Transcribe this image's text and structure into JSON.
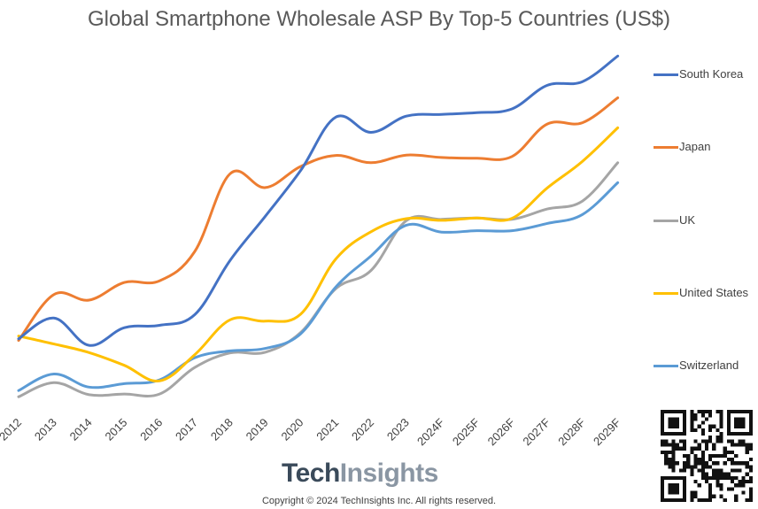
{
  "chart_data": {
    "type": "line",
    "title": "Global Smartphone Wholesale ASP By Top-5 Countries (US$)",
    "xlabel": "",
    "ylabel": "",
    "categories": [
      "2012",
      "2013",
      "2014",
      "2015",
      "2016",
      "2017",
      "2018",
      "2019",
      "2020",
      "2021",
      "2022",
      "2023",
      "2024F",
      "2025F",
      "2026F",
      "2027F",
      "2028F",
      "2029F"
    ],
    "ylim": [
      0,
      100
    ],
    "grid": false,
    "y_axis_labels_shown": false,
    "legend_position": "right",
    "series": [
      {
        "name": "South Korea",
        "color": "#4472C4",
        "values": [
          27.0,
          33.0,
          25.1,
          30.2,
          30.9,
          34.0,
          49.7,
          62.5,
          75.7,
          91.2,
          86.8,
          91.5,
          92.0,
          92.5,
          93.6,
          100.4,
          101.5,
          108.9
        ]
      },
      {
        "name": "Japan",
        "color": "#ED7D31",
        "values": [
          26.5,
          39.8,
          38.2,
          43.3,
          43.8,
          52.3,
          74.8,
          70.8,
          76.9,
          80.1,
          78.0,
          80.2,
          79.5,
          79.3,
          79.8,
          89.2,
          89.6,
          96.8
        ]
      },
      {
        "name": "UK",
        "color": "#A5A5A5",
        "values": [
          10.2,
          14.3,
          10.8,
          11.0,
          11.0,
          18.7,
          22.9,
          23.1,
          28.8,
          41.5,
          46.8,
          61.2,
          61.6,
          62.0,
          61.6,
          64.6,
          66.9,
          78.0
        ]
      },
      {
        "name": "United States",
        "color": "#FFC000",
        "values": [
          27.8,
          25.5,
          23.0,
          19.3,
          14.8,
          22.4,
          32.5,
          32.1,
          34.1,
          50.1,
          58.0,
          61.8,
          61.3,
          62.0,
          61.9,
          70.7,
          78.4,
          88.1
        ]
      },
      {
        "name": "Switzerland",
        "color": "#5B9BD5",
        "values": [
          12.0,
          16.8,
          13.0,
          14.0,
          15.1,
          21.5,
          23.5,
          24.2,
          28.4,
          42.0,
          51.0,
          59.9,
          57.9,
          58.3,
          58.3,
          60.4,
          63.0,
          72.2
        ]
      }
    ]
  },
  "branding": {
    "brand_part1": "Tech",
    "brand_part2": "Insights",
    "copyright": "Copyright © 2024 TechInsights Inc. All rights reserved."
  }
}
